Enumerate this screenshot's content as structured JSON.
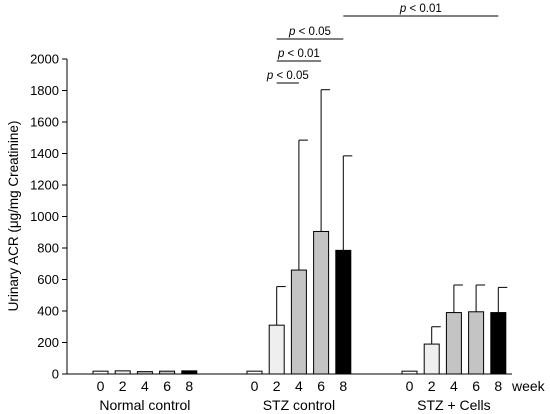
{
  "chart_data": {
    "type": "bar",
    "ylabel": "Urinary ACR (μg/mg Creatinine)",
    "ylim": [
      0,
      2000
    ],
    "yticks": [
      0,
      200,
      400,
      600,
      800,
      1000,
      1200,
      1400,
      1600,
      1800,
      2000
    ],
    "grid": false,
    "xunit_label": "week",
    "weeks": [
      "0",
      "2",
      "4",
      "6",
      "8"
    ],
    "week_colors": [
      "#ffffff",
      "#efefef",
      "#c4c4c4",
      "#c4c4c4",
      "#000000"
    ],
    "groups": [
      {
        "name": "Normal control",
        "values": [
          18,
          20,
          15,
          18,
          20
        ],
        "errors": [
          0,
          0,
          0,
          0,
          0
        ]
      },
      {
        "name": "STZ control",
        "values": [
          18,
          310,
          660,
          905,
          785
        ],
        "errors": [
          0,
          245,
          825,
          900,
          600
        ]
      },
      {
        "name": "STZ + Cells",
        "values": [
          18,
          190,
          390,
          395,
          390
        ],
        "errors": [
          0,
          110,
          175,
          170,
          160
        ]
      }
    ],
    "significance": [
      {
        "p_symbol": "p",
        "text": " < 0.05",
        "from": [
          1,
          1
        ],
        "to": [
          1,
          2
        ]
      },
      {
        "p_symbol": "p",
        "text": " < 0.01",
        "from": [
          1,
          1
        ],
        "to": [
          1,
          3
        ]
      },
      {
        "p_symbol": "p",
        "text": " < 0.05",
        "from": [
          1,
          1
        ],
        "to": [
          1,
          4
        ]
      },
      {
        "p_symbol": "p",
        "text": " < 0.01",
        "from": [
          1,
          4
        ],
        "to": [
          2,
          4
        ]
      }
    ]
  }
}
